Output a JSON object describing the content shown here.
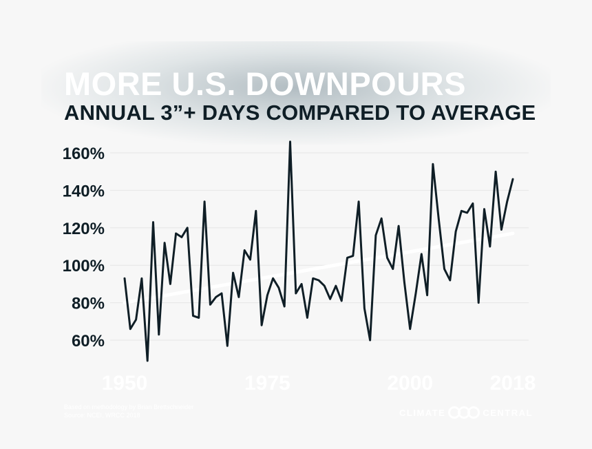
{
  "header": {
    "title": "MORE U.S. DOWNPOURS",
    "subtitle": "ANNUAL 3”+ DAYS COMPARED TO AVERAGE"
  },
  "footer": {
    "source_line1": "Based on methodology by Brian Brettschneider",
    "source_line2": "Source: NCEI, WRCC 2018",
    "brand_left": "CLIMATE",
    "brand_right": "CENTRAL"
  },
  "colors": {
    "line": "#0f1e26",
    "trend": "#ffffff",
    "grid": "#e6e6e6",
    "text": "#0f1e26"
  },
  "chart_data": {
    "type": "line",
    "title": "MORE U.S. DOWNPOURS",
    "subtitle": "ANNUAL 3”+ DAYS COMPARED TO AVERAGE",
    "xlabel": "",
    "ylabel": "",
    "xlim": [
      1950,
      2018
    ],
    "ylim": [
      47,
      168
    ],
    "grid": true,
    "x_ticks": [
      1950,
      1975,
      2000,
      2018
    ],
    "x_tick_labels": [
      "1950",
      "1975",
      "2000",
      "2018"
    ],
    "y_ticks": [
      60,
      80,
      100,
      120,
      140,
      160
    ],
    "y_tick_labels": [
      "60%",
      "80%",
      "100%",
      "120%",
      "140%",
      "160%"
    ],
    "series": [
      {
        "name": "Annual 3\"+ days vs average",
        "x": [
          1950,
          1951,
          1952,
          1953,
          1954,
          1955,
          1956,
          1957,
          1958,
          1959,
          1960,
          1961,
          1962,
          1963,
          1964,
          1965,
          1966,
          1967,
          1968,
          1969,
          1970,
          1971,
          1972,
          1973,
          1974,
          1975,
          1976,
          1977,
          1978,
          1979,
          1980,
          1981,
          1982,
          1983,
          1984,
          1985,
          1986,
          1987,
          1988,
          1989,
          1990,
          1991,
          1992,
          1993,
          1994,
          1995,
          1996,
          1997,
          1998,
          1999,
          2000,
          2001,
          2002,
          2003,
          2004,
          2005,
          2006,
          2007,
          2008,
          2009,
          2010,
          2011,
          2012,
          2013,
          2014,
          2015,
          2016,
          2017,
          2018
        ],
        "values": [
          93,
          66,
          71,
          93,
          49,
          123,
          63,
          112,
          90,
          117,
          115,
          120,
          73,
          72,
          134,
          79,
          83,
          85,
          57,
          96,
          83,
          108,
          103,
          129,
          68,
          84,
          93,
          88,
          78,
          166,
          85,
          90,
          72,
          93,
          92,
          89,
          82,
          89,
          81,
          104,
          105,
          134,
          77,
          60,
          116,
          125,
          104,
          98,
          121,
          91,
          66,
          85,
          106,
          84,
          154,
          125,
          98,
          92,
          118,
          129,
          128,
          133,
          80,
          130,
          110,
          150,
          119,
          134,
          146
        ]
      },
      {
        "name": "Trend",
        "x": [
          1950,
          2018
        ],
        "values": [
          80,
          117
        ]
      }
    ]
  }
}
